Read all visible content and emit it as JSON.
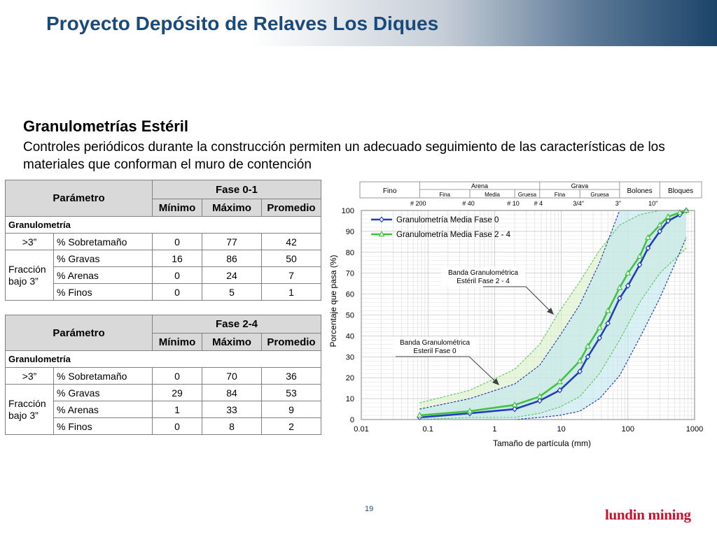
{
  "slide": {
    "title": "Proyecto Depósito de Relaves Los Diques",
    "section_heading": "Granulometrías Estéril",
    "section_text": "Controles periódicos durante la construcción permiten un adecuado seguimiento de las características de los materiales que conforman el muro de contención",
    "page_number": "19",
    "logo_text": "lundin mining"
  },
  "tables": [
    {
      "header_param": "Parámetro",
      "header_phase": "Fase 0-1",
      "col_min": "Mínimo",
      "col_max": "Máximo",
      "col_avg": "Promedio",
      "group_label": "Granulometría",
      "oversize": {
        "label": ">3”",
        "param": "% Sobretamaño",
        "min": "0",
        "max": "77",
        "avg": "42"
      },
      "fraction_label": "Fracción bajo 3”",
      "rows": [
        {
          "param": "% Gravas",
          "min": "16",
          "max": "86",
          "avg": "50"
        },
        {
          "param": "% Arenas",
          "min": "0",
          "max": "24",
          "avg": "7"
        },
        {
          "param": "% Finos",
          "min": "0",
          "max": "5",
          "avg": "1"
        }
      ]
    },
    {
      "header_param": "Parámetro",
      "header_phase": "Fase 2-4",
      "col_min": "Mínimo",
      "col_max": "Máximo",
      "col_avg": "Promedio",
      "group_label": "Granulometría",
      "oversize": {
        "label": ">3”",
        "param": "% Sobretamaño",
        "min": "0",
        "max": "70",
        "avg": "36"
      },
      "fraction_label": "Fracción bajo 3”",
      "rows": [
        {
          "param": "% Gravas",
          "min": "29",
          "max": "84",
          "avg": "53"
        },
        {
          "param": "% Arenas",
          "min": "1",
          "max": "33",
          "avg": "9"
        },
        {
          "param": "% Finos",
          "min": "0",
          "max": "8",
          "avg": "2"
        }
      ]
    }
  ],
  "chart_data": {
    "type": "line",
    "x_scale": "log",
    "xlim": [
      0.01,
      1000
    ],
    "ylim": [
      0,
      100
    ],
    "xlabel": "Tamaño  de  partícula  (mm)",
    "ylabel": "Porcentaje  que  pasa  (%)",
    "x_ticks": [
      "0.01",
      "0.1",
      "1",
      "10",
      "100",
      "1000"
    ],
    "y_ticks": [
      "0",
      "10",
      "20",
      "30",
      "40",
      "50",
      "60",
      "70",
      "80",
      "90",
      "100"
    ],
    "grid": true,
    "classification_header": {
      "fino": "Fino",
      "arena": "Arena",
      "arena_fina": "Fina",
      "arena_media": "Media",
      "arena_gruesa": "Gruesa",
      "grava": "Grava",
      "grava_fina": "Fina",
      "grava_gruesa": "Gruesa",
      "bolones": "Bolones",
      "bloques": "Bloques"
    },
    "sieve_labels": [
      {
        "label": "# 200",
        "x": 0.075
      },
      {
        "label": "# 40",
        "x": 0.425
      },
      {
        "label": "# 10",
        "x": 2.0
      },
      {
        "label": "# 4",
        "x": 4.75
      },
      {
        "label": "3/4\"",
        "x": 19
      },
      {
        "label": "3\"",
        "x": 75
      },
      {
        "label": "10\"",
        "x": 250
      }
    ],
    "series": [
      {
        "name": "Granulometría Media Fase 0",
        "color": "#1f3fbf",
        "marker": "diamond",
        "x": [
          0.075,
          0.425,
          2.0,
          4.75,
          9.5,
          19,
          25,
          37.5,
          50,
          75,
          100,
          150,
          200,
          300,
          400,
          600,
          750
        ],
        "y": [
          1,
          3,
          5,
          9,
          14,
          23,
          30,
          39,
          46,
          58,
          64,
          74,
          82,
          90,
          95,
          98,
          100
        ]
      },
      {
        "name": "Granulometría Media Fase 2 - 4",
        "color": "#44c144",
        "marker": "triangle",
        "x": [
          0.075,
          0.425,
          2.0,
          4.75,
          9.5,
          19,
          25,
          37.5,
          50,
          75,
          100,
          150,
          200,
          300,
          400,
          600,
          750
        ],
        "y": [
          2,
          4,
          7,
          11,
          18,
          28,
          35,
          44,
          52,
          63,
          70,
          78,
          87,
          93,
          97,
          99,
          100
        ]
      }
    ],
    "bands": [
      {
        "label": "Banda Granulométrica Estéril Fase 2 - 4",
        "color": "#55c555",
        "fill": "#d8f0c8",
        "lower_x": [
          0.075,
          0.425,
          2.0,
          4.75,
          9.5,
          19,
          37.5,
          75,
          150,
          300,
          750
        ],
        "lower_y": [
          0,
          1,
          1,
          3,
          6,
          11,
          22,
          38,
          56,
          70,
          82
        ],
        "upper_x": [
          0.075,
          0.425,
          2.0,
          4.75,
          9.5,
          19,
          37.5,
          75,
          150,
          300,
          750
        ],
        "upper_y": [
          8,
          14,
          24,
          36,
          52,
          66,
          81,
          93,
          98,
          100,
          100
        ]
      },
      {
        "label": "Banda Granulométrica Esteril Fase 0",
        "color": "#1c2fa8",
        "fill": "#bfe6ee",
        "lower_x": [
          0.075,
          0.425,
          2.0,
          4.75,
          9.5,
          19,
          37.5,
          75,
          150,
          300,
          750
        ],
        "lower_y": [
          0,
          0,
          0,
          1,
          2,
          4,
          10,
          21,
          39,
          58,
          87
        ],
        "upper_x": [
          0.075,
          0.425,
          2.0,
          4.75,
          9.5,
          19,
          37.5,
          75,
          150,
          300,
          750
        ],
        "upper_y": [
          5,
          10,
          17,
          26,
          40,
          55,
          75,
          100,
          100,
          100,
          100
        ]
      }
    ],
    "annotations": [
      {
        "line1": "Banda Granulométrica",
        "line2": "Estéril Fase 2 - 4"
      },
      {
        "line1": "Banda Granulométrica",
        "line2": "Esteril Fase 0"
      }
    ]
  }
}
